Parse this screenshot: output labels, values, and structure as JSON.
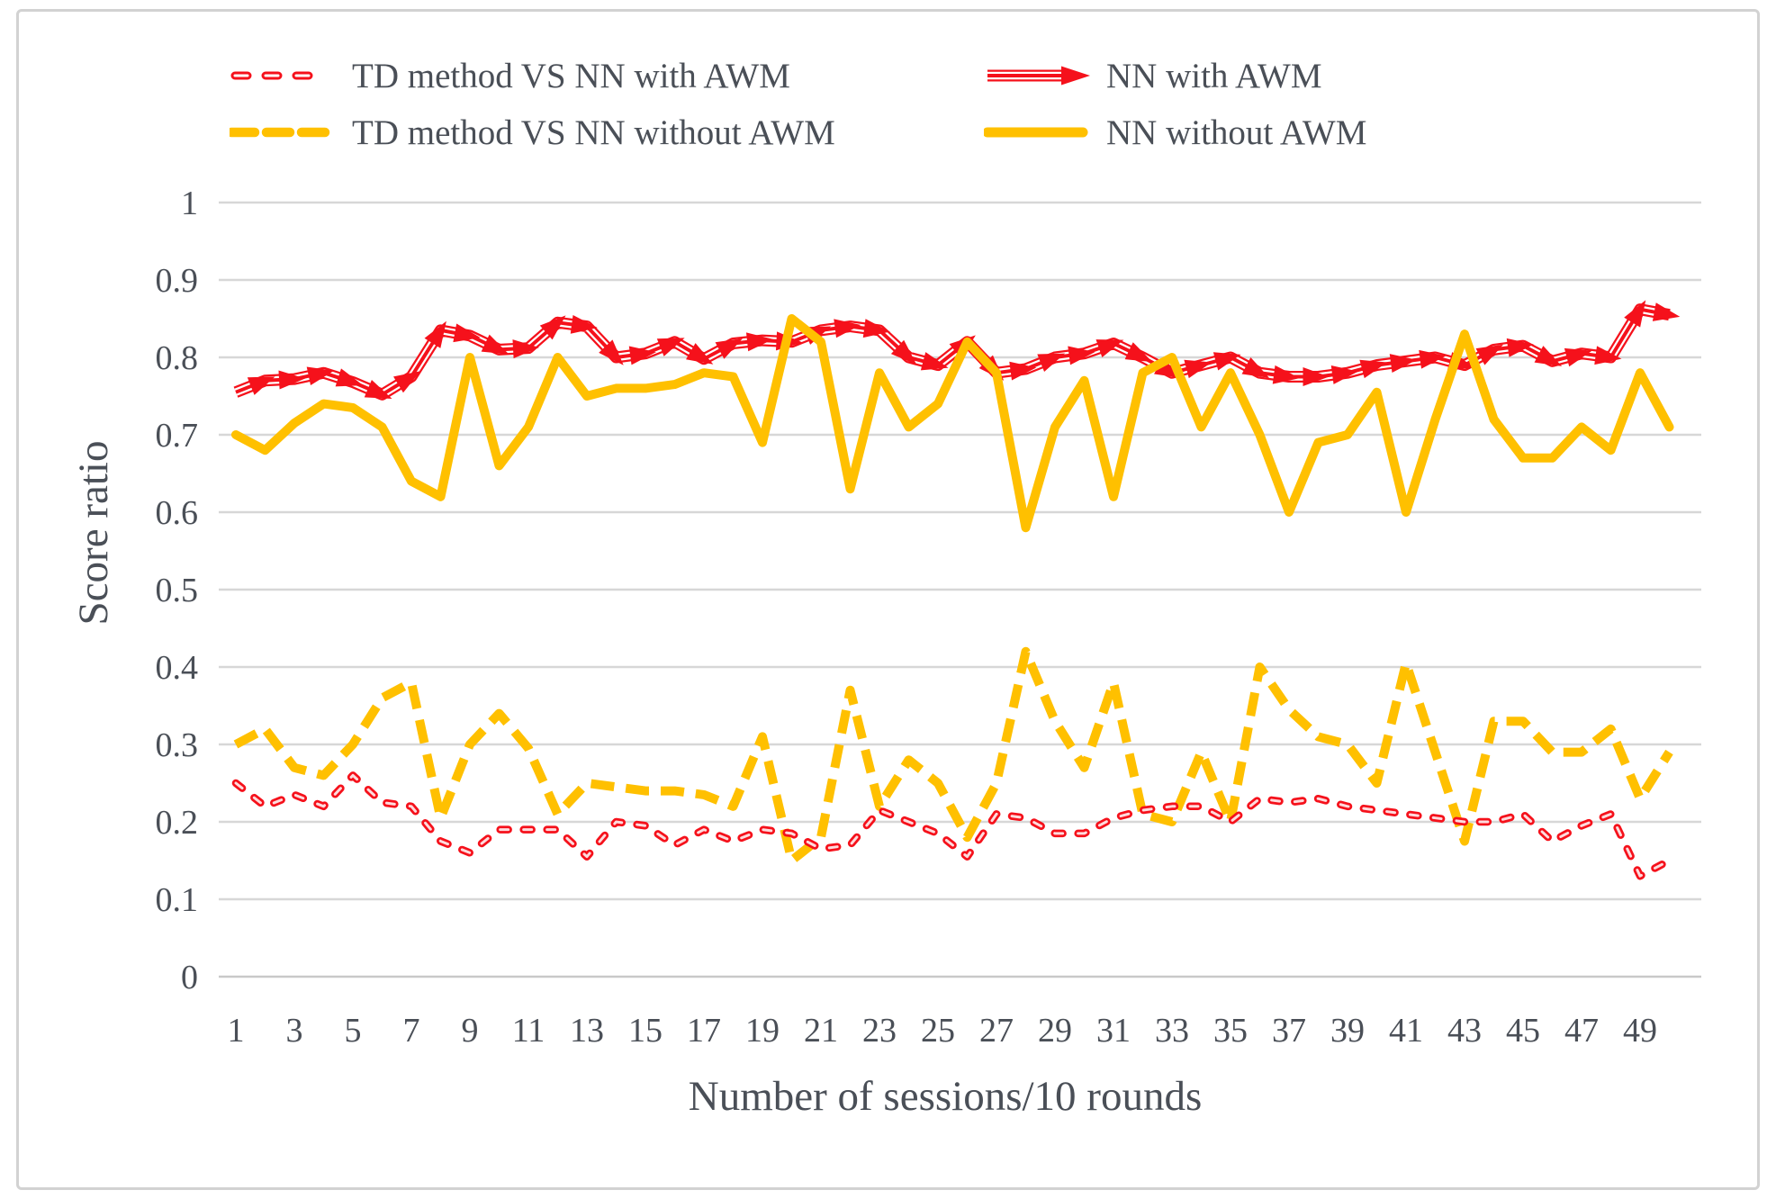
{
  "figure": {
    "kind": "excel-style line chart"
  },
  "colors": {
    "red": "#f5111b",
    "yellow": "#ffc000",
    "text": "#4a4f57",
    "grid": "#d7d7d7",
    "axis": "#c9c9c9",
    "frame": "#d2d2d2",
    "background": "#ffffff"
  },
  "legend": {
    "items": [
      {
        "label": "TD method VS NN with AWM",
        "swatch": "dashed-short",
        "color": "#f5111b",
        "column": 0,
        "row": 0
      },
      {
        "label": "TD method VS NN without AWM",
        "swatch": "dashed-long",
        "color": "#ffc000",
        "column": 0,
        "row": 1
      },
      {
        "label": "NN with AWM",
        "swatch": "striped-arrow",
        "color": "#f5111b",
        "column": 1,
        "row": 0
      },
      {
        "label": "NN without AWM",
        "swatch": "solid",
        "color": "#ffc000",
        "column": 1,
        "row": 1
      }
    ]
  },
  "chart_data": {
    "type": "line",
    "title": "",
    "xlabel": "Number of sessions/10 rounds",
    "ylabel": "Score ratio",
    "xlim": [
      1,
      50
    ],
    "ylim": [
      0,
      1
    ],
    "grid": true,
    "legend_position": "top",
    "x": [
      1,
      2,
      3,
      4,
      5,
      6,
      7,
      8,
      9,
      10,
      11,
      12,
      13,
      14,
      15,
      16,
      17,
      18,
      19,
      20,
      21,
      22,
      23,
      24,
      25,
      26,
      27,
      28,
      29,
      30,
      31,
      32,
      33,
      34,
      35,
      36,
      37,
      38,
      39,
      40,
      41,
      42,
      43,
      44,
      45,
      46,
      47,
      48,
      49,
      50
    ],
    "x_ticks": [
      1,
      3,
      5,
      7,
      9,
      11,
      13,
      15,
      17,
      19,
      21,
      23,
      25,
      27,
      29,
      31,
      33,
      35,
      37,
      39,
      41,
      43,
      45,
      47,
      49
    ],
    "y_ticks": [
      {
        "label": "0",
        "value": 0
      },
      {
        "label": "0.1",
        "value": 0.1
      },
      {
        "label": "0.2",
        "value": 0.2
      },
      {
        "label": "0.3",
        "value": 0.3
      },
      {
        "label": "0.4",
        "value": 0.4
      },
      {
        "label": "0.5",
        "value": 0.5
      },
      {
        "label": "0.6",
        "value": 0.6
      },
      {
        "label": "0.7",
        "value": 0.7
      },
      {
        "label": "0.8",
        "value": 0.8
      },
      {
        "label": "0.9",
        "value": 0.9
      },
      {
        "label": "1",
        "value": 1
      }
    ],
    "series": [
      {
        "name": "TD method VS NN with AWM",
        "color": "#f5111b",
        "style": "dashed-short",
        "values": [
          0.25,
          0.22,
          0.235,
          0.22,
          0.26,
          0.225,
          0.22,
          0.175,
          0.16,
          0.19,
          0.19,
          0.19,
          0.155,
          0.2,
          0.195,
          0.17,
          0.19,
          0.175,
          0.19,
          0.185,
          0.165,
          0.17,
          0.215,
          0.2,
          0.185,
          0.155,
          0.21,
          0.205,
          0.185,
          0.185,
          0.205,
          0.215,
          0.22,
          0.22,
          0.2,
          0.23,
          0.225,
          0.23,
          0.22,
          0.215,
          0.21,
          0.205,
          0.2,
          0.2,
          0.21,
          0.175,
          0.195,
          0.21,
          0.13,
          0.15
        ]
      },
      {
        "name": "TD method VS NN without AWM",
        "color": "#ffc000",
        "style": "dashed-long",
        "values": [
          0.3,
          0.32,
          0.27,
          0.26,
          0.3,
          0.36,
          0.38,
          0.205,
          0.3,
          0.34,
          0.295,
          0.21,
          0.25,
          0.245,
          0.24,
          0.24,
          0.235,
          0.22,
          0.31,
          0.15,
          0.18,
          0.37,
          0.22,
          0.28,
          0.25,
          0.18,
          0.25,
          0.42,
          0.33,
          0.27,
          0.38,
          0.21,
          0.2,
          0.29,
          0.2,
          0.4,
          0.345,
          0.31,
          0.3,
          0.25,
          0.405,
          0.29,
          0.175,
          0.33,
          0.33,
          0.29,
          0.29,
          0.32,
          0.23,
          0.29
        ]
      },
      {
        "name": "NN with AWM",
        "color": "#f5111b",
        "style": "striped-arrow",
        "values": [
          0.755,
          0.77,
          0.772,
          0.78,
          0.768,
          0.752,
          0.775,
          0.835,
          0.828,
          0.81,
          0.812,
          0.845,
          0.84,
          0.8,
          0.805,
          0.82,
          0.798,
          0.818,
          0.822,
          0.82,
          0.835,
          0.84,
          0.835,
          0.8,
          0.79,
          0.82,
          0.78,
          0.785,
          0.8,
          0.805,
          0.818,
          0.8,
          0.78,
          0.79,
          0.8,
          0.78,
          0.775,
          0.775,
          0.78,
          0.79,
          0.795,
          0.8,
          0.79,
          0.81,
          0.815,
          0.795,
          0.805,
          0.8,
          0.862,
          0.855
        ]
      },
      {
        "name": "NN without AWM",
        "color": "#ffc000",
        "style": "solid",
        "values": [
          0.7,
          0.68,
          0.715,
          0.74,
          0.735,
          0.71,
          0.64,
          0.62,
          0.8,
          0.66,
          0.71,
          0.8,
          0.75,
          0.76,
          0.76,
          0.765,
          0.78,
          0.775,
          0.69,
          0.85,
          0.82,
          0.63,
          0.78,
          0.71,
          0.74,
          0.82,
          0.78,
          0.58,
          0.71,
          0.77,
          0.62,
          0.78,
          0.8,
          0.71,
          0.78,
          0.7,
          0.6,
          0.69,
          0.7,
          0.755,
          0.6,
          0.72,
          0.83,
          0.72,
          0.67,
          0.67,
          0.71,
          0.68,
          0.78,
          0.71
        ]
      }
    ]
  }
}
